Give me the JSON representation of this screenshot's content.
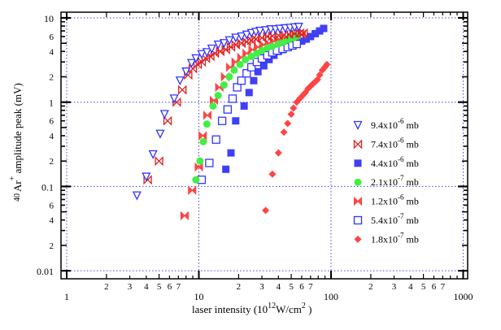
{
  "chart_data": {
    "type": "scatter",
    "title": "",
    "xlabel": "laser intensity   (10",
    "xlabel_sup": "12",
    "xlabel_mid": "W/cm",
    "xlabel_sup2": "2",
    "xlabel_end": " )",
    "ylabel_sup_mass": "40",
    "ylabel_ion": "Ar",
    "ylabel_sup_charge": "+",
    "ylabel_rest": " amplitude peak  (mV)",
    "xscale": "log",
    "yscale": "log",
    "xlim": [
      1,
      1000
    ],
    "ylim": [
      0.01,
      10
    ],
    "grid": true,
    "legend_position": "center-right",
    "x_major_ticks": [
      "1",
      "10",
      "100",
      "1000"
    ],
    "x_minor_tick_labels": [
      "2",
      "3",
      "4",
      "5",
      "6",
      "7"
    ],
    "y_major_ticks": [
      "10",
      "1",
      "0.1",
      "0.01"
    ],
    "y_minor_tick_labels": [
      "6",
      "4",
      "2"
    ],
    "series": [
      {
        "name": "9.4x10",
        "exp": "-6",
        "unit": "mb",
        "marker": "triangle-down-open",
        "color": "#3333ff",
        "points": [
          [
            3.4,
            0.078
          ],
          [
            4.0,
            0.13
          ],
          [
            4.5,
            0.24
          ],
          [
            5.1,
            0.42
          ],
          [
            5.5,
            0.72
          ],
          [
            6.5,
            1.1
          ],
          [
            7.2,
            1.8
          ],
          [
            8.0,
            2.3
          ],
          [
            8.8,
            2.9
          ],
          [
            9.5,
            3.3
          ],
          [
            10.5,
            3.7
          ],
          [
            11.5,
            3.9
          ],
          [
            12.5,
            4.3
          ],
          [
            14,
            4.8
          ],
          [
            15.5,
            5.0
          ],
          [
            17,
            5.4
          ],
          [
            19,
            5.8
          ],
          [
            21,
            6.0
          ],
          [
            23,
            6.3
          ],
          [
            25,
            6.6
          ],
          [
            27,
            6.8
          ],
          [
            29,
            7.0
          ],
          [
            32,
            7.1
          ],
          [
            35,
            7.3
          ],
          [
            38,
            7.3
          ],
          [
            41,
            7.4
          ],
          [
            45,
            7.5
          ],
          [
            49,
            7.6
          ],
          [
            53,
            7.7
          ],
          [
            57,
            7.8
          ]
        ]
      },
      {
        "name": "7.4x10",
        "exp": "-6",
        "unit": "mb",
        "marker": "bowtie-open",
        "color": "#dd2222",
        "points": [
          [
            4.1,
            0.12
          ],
          [
            5.0,
            0.2
          ],
          [
            5.8,
            0.6
          ],
          [
            6.8,
            1.0
          ],
          [
            7.5,
            1.4
          ],
          [
            8.3,
            2.1
          ],
          [
            9.0,
            2.5
          ],
          [
            9.8,
            2.8
          ],
          [
            10.5,
            3.0
          ],
          [
            11.3,
            3.3
          ],
          [
            12.2,
            3.5
          ],
          [
            13.2,
            3.8
          ],
          [
            14.5,
            4.0
          ],
          [
            16,
            4.2
          ],
          [
            17.5,
            4.5
          ],
          [
            19,
            4.8
          ],
          [
            21,
            5.0
          ],
          [
            23,
            5.2
          ],
          [
            25,
            5.4
          ],
          [
            27,
            5.6
          ],
          [
            30,
            5.8
          ],
          [
            33,
            6.0
          ],
          [
            36,
            6.1
          ],
          [
            40,
            6.2
          ],
          [
            44,
            6.3
          ],
          [
            48,
            6.4
          ],
          [
            53,
            6.5
          ],
          [
            58,
            6.6
          ],
          [
            62,
            6.6
          ]
        ]
      },
      {
        "name": "4.4x10",
        "exp": "-6",
        "unit": "mb",
        "marker": "square-filled",
        "color": "#3f3ff7",
        "points": [
          [
            16,
            0.16
          ],
          [
            17.5,
            0.25
          ],
          [
            19,
            0.6
          ],
          [
            22,
            0.9
          ],
          [
            24,
            1.3
          ],
          [
            26,
            1.8
          ],
          [
            28,
            2.3
          ],
          [
            31,
            2.7
          ],
          [
            34,
            3.2
          ],
          [
            37,
            3.6
          ],
          [
            40,
            4.0
          ],
          [
            43,
            4.2
          ],
          [
            47,
            4.5
          ],
          [
            51,
            4.7
          ],
          [
            55,
            5.0
          ],
          [
            60,
            5.3
          ],
          [
            65,
            5.6
          ],
          [
            70,
            6.0
          ],
          [
            76,
            6.5
          ],
          [
            82,
            7.0
          ],
          [
            88,
            7.5
          ]
        ]
      },
      {
        "name": "2.1x10",
        "exp": "-7",
        "unit": "mb",
        "marker": "circle-filled",
        "color": "#44ee44",
        "points": [
          [
            9.5,
            0.12
          ],
          [
            10.2,
            0.2
          ],
          [
            10.8,
            0.34
          ],
          [
            11.5,
            0.55
          ],
          [
            12.8,
            0.9
          ],
          [
            14,
            1.2
          ],
          [
            15.5,
            1.6
          ],
          [
            17,
            2.0
          ],
          [
            18.5,
            2.4
          ],
          [
            20.5,
            2.8
          ],
          [
            22.5,
            3.2
          ],
          [
            25,
            3.5
          ],
          [
            27.5,
            3.8
          ],
          [
            30,
            4.1
          ],
          [
            33,
            4.4
          ],
          [
            36,
            4.6
          ],
          [
            40,
            4.9
          ],
          [
            44,
            5.2
          ],
          [
            48,
            5.5
          ],
          [
            52,
            5.8
          ],
          [
            56,
            6.1
          ]
        ]
      },
      {
        "name": "1.2x10",
        "exp": "-6",
        "unit": "mb",
        "marker": "bowtie-filled",
        "color": "#ff4444",
        "points": [
          [
            7.8,
            0.045
          ],
          [
            8.9,
            0.09
          ],
          [
            10.0,
            0.17
          ],
          [
            10.7,
            0.4
          ],
          [
            11.6,
            0.7
          ],
          [
            13,
            1.05
          ],
          [
            14.3,
            1.5
          ],
          [
            15.8,
            2.0
          ],
          [
            17.3,
            2.6
          ],
          [
            19,
            3.0
          ],
          [
            21,
            3.4
          ],
          [
            23,
            3.8
          ],
          [
            25.5,
            4.2
          ],
          [
            28,
            4.5
          ],
          [
            31,
            4.8
          ],
          [
            34,
            5.0
          ],
          [
            37,
            5.3
          ],
          [
            41,
            5.5
          ],
          [
            45,
            5.7
          ],
          [
            50,
            6.0
          ],
          [
            55,
            6.2
          ],
          [
            60,
            6.4
          ]
        ]
      },
      {
        "name": "5.4x10",
        "exp": "-7",
        "unit": "mb",
        "marker": "square-open",
        "color": "#3333ff",
        "points": [
          [
            10.5,
            0.12
          ],
          [
            12.0,
            0.19
          ],
          [
            13.5,
            0.36
          ],
          [
            15,
            0.6
          ],
          [
            16.5,
            0.82
          ],
          [
            18,
            1.1
          ],
          [
            19.5,
            1.5
          ],
          [
            21,
            1.8
          ],
          [
            23,
            2.2
          ],
          [
            25,
            2.6
          ],
          [
            27.5,
            3.0
          ],
          [
            30,
            3.3
          ],
          [
            33,
            3.6
          ],
          [
            36,
            3.9
          ],
          [
            39,
            4.1
          ],
          [
            43,
            4.3
          ],
          [
            47,
            4.5
          ],
          [
            51,
            4.7
          ],
          [
            55,
            4.9
          ]
        ]
      },
      {
        "name": "1.8x10",
        "exp": "-7",
        "unit": "mb",
        "marker": "diamond-filled",
        "color": "#ff4444",
        "points": [
          [
            32,
            0.052
          ],
          [
            36,
            0.14
          ],
          [
            40,
            0.25
          ],
          [
            44,
            0.44
          ],
          [
            47,
            0.56
          ],
          [
            50,
            0.72
          ],
          [
            52,
            0.85
          ],
          [
            55,
            1.0
          ],
          [
            58,
            1.1
          ],
          [
            61,
            1.2
          ],
          [
            64,
            1.3
          ],
          [
            67,
            1.45
          ],
          [
            70,
            1.55
          ],
          [
            73,
            1.65
          ],
          [
            76,
            1.75
          ],
          [
            79,
            1.85
          ],
          [
            82,
            2.1
          ],
          [
            86,
            2.4
          ],
          [
            90,
            2.6
          ],
          [
            93,
            2.8
          ]
        ]
      }
    ]
  }
}
